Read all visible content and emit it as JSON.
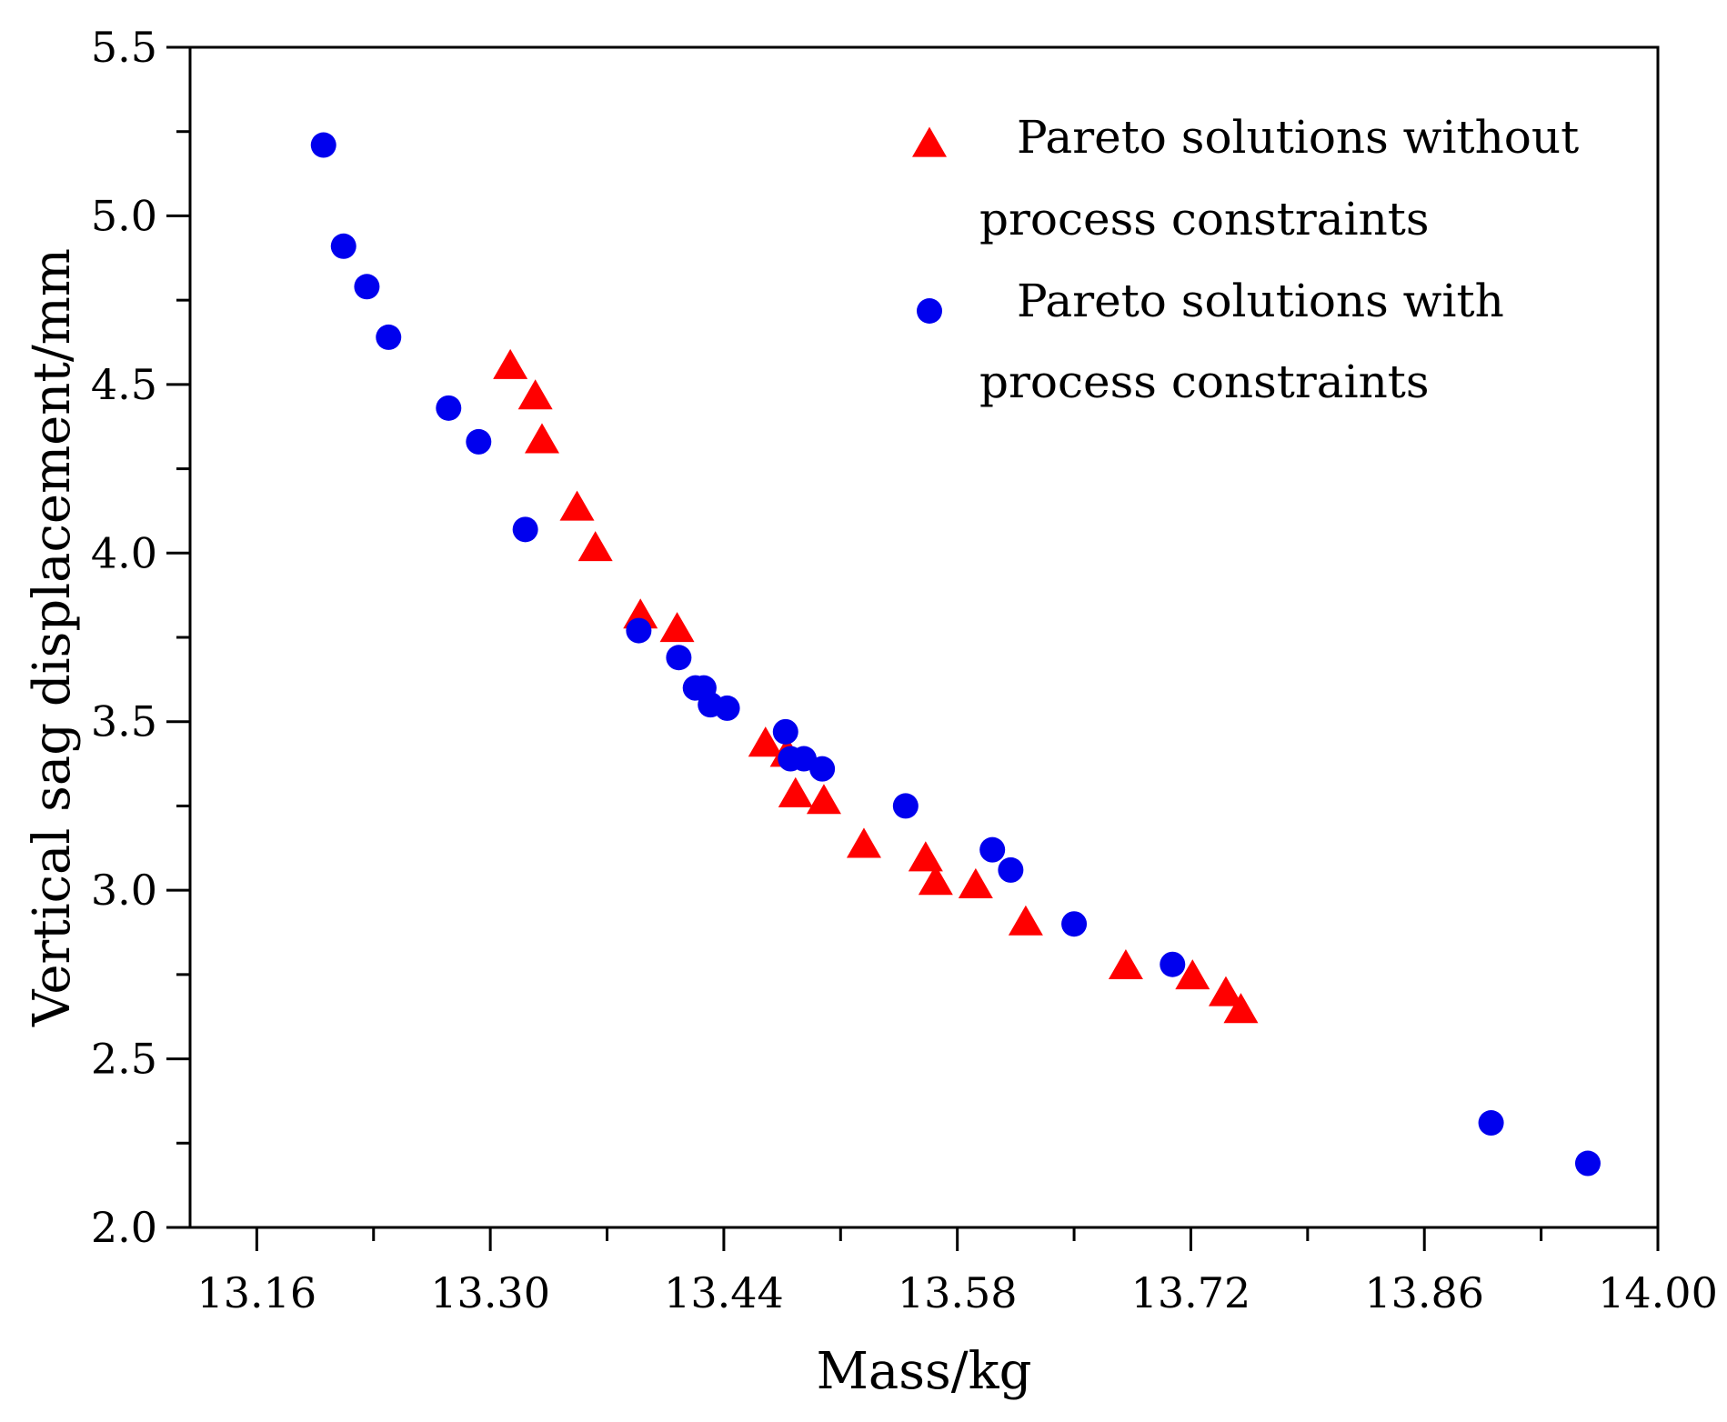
{
  "chart_data": {
    "type": "scatter",
    "title": "",
    "xlabel": "Mass/kg",
    "ylabel": "Vertical sag displacement/mm",
    "xlim": [
      13.12,
      14.0
    ],
    "ylim": [
      2.0,
      5.5
    ],
    "x_ticks": [
      "13.16",
      "13.30",
      "13.44",
      "13.58",
      "13.72",
      "13.86",
      "14.00"
    ],
    "x_tick_values": [
      13.16,
      13.3,
      13.44,
      13.58,
      13.72,
      13.86,
      14.0
    ],
    "x_minor_ticks": [
      13.23,
      13.37,
      13.51,
      13.65,
      13.79,
      13.93
    ],
    "y_ticks": [
      "2.0",
      "2.5",
      "3.0",
      "3.5",
      "4.0",
      "4.5",
      "5.0",
      "5.5"
    ],
    "y_tick_values": [
      2.0,
      2.5,
      3.0,
      3.5,
      4.0,
      4.5,
      5.0,
      5.5
    ],
    "y_minor_ticks": [
      2.25,
      2.75,
      3.25,
      3.75,
      4.25,
      4.75,
      5.25
    ],
    "grid": false,
    "legend_position": "top-right",
    "series": [
      {
        "name": "Pareto solutions without process constraints",
        "legend_lines": [
          "Pareto solutions without",
          "process constraints"
        ],
        "marker": "triangle",
        "color": "#ff0000",
        "points": [
          [
            13.312,
            4.55
          ],
          [
            13.327,
            4.46
          ],
          [
            13.331,
            4.33
          ],
          [
            13.352,
            4.13
          ],
          [
            13.363,
            4.01
          ],
          [
            13.39,
            3.81
          ],
          [
            13.412,
            3.77
          ],
          [
            13.465,
            3.43
          ],
          [
            13.478,
            3.4
          ],
          [
            13.483,
            3.28
          ],
          [
            13.5,
            3.26
          ],
          [
            13.524,
            3.13
          ],
          [
            13.561,
            3.09
          ],
          [
            13.567,
            3.02
          ],
          [
            13.591,
            3.01
          ],
          [
            13.621,
            2.9
          ],
          [
            13.681,
            2.77
          ],
          [
            13.721,
            2.74
          ],
          [
            13.741,
            2.69
          ],
          [
            13.75,
            2.64
          ]
        ]
      },
      {
        "name": "Pareto solutions with process constraints",
        "legend_lines": [
          "Pareto solutions with",
          "process constraints"
        ],
        "marker": "circle",
        "color": "#0000ee",
        "points": [
          [
            13.2,
            5.21
          ],
          [
            13.212,
            4.91
          ],
          [
            13.226,
            4.79
          ],
          [
            13.239,
            4.64
          ],
          [
            13.275,
            4.43
          ],
          [
            13.293,
            4.33
          ],
          [
            13.321,
            4.07
          ],
          [
            13.389,
            3.77
          ],
          [
            13.413,
            3.69
          ],
          [
            13.423,
            3.6
          ],
          [
            13.428,
            3.6
          ],
          [
            13.432,
            3.55
          ],
          [
            13.442,
            3.54
          ],
          [
            13.477,
            3.47
          ],
          [
            13.48,
            3.39
          ],
          [
            13.488,
            3.39
          ],
          [
            13.499,
            3.36
          ],
          [
            13.549,
            3.25
          ],
          [
            13.601,
            3.12
          ],
          [
            13.612,
            3.06
          ],
          [
            13.65,
            2.9
          ],
          [
            13.709,
            2.78
          ],
          [
            13.9,
            2.31
          ],
          [
            13.958,
            2.19
          ]
        ]
      }
    ]
  }
}
